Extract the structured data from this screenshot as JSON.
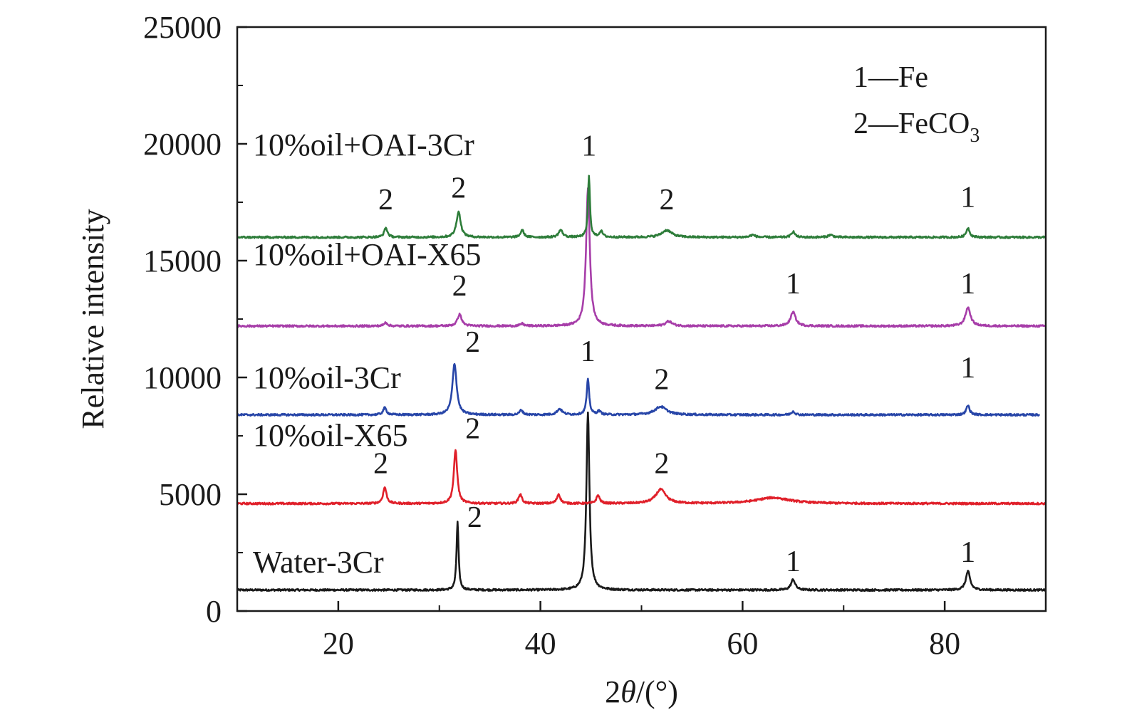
{
  "chart_data": {
    "type": "line",
    "xlabel": "2θ/(°)",
    "ylabel": "Relative intensity",
    "xlim": [
      10,
      90
    ],
    "ylim": [
      0,
      25000
    ],
    "x_ticks": [
      20,
      40,
      60,
      80
    ],
    "y_ticks": [
      0,
      5000,
      10000,
      15000,
      20000,
      25000
    ],
    "legend": {
      "placement": "top-right",
      "entries": [
        {
          "text": "1—Fe"
        },
        {
          "text": "2—FeCO",
          "subscript": "3"
        }
      ]
    },
    "series": [
      {
        "name": "Water-3Cr",
        "color": "#1a1a1a",
        "baseline": 900,
        "peaks": [
          {
            "x": 31.8,
            "height": 2900,
            "width": 0.12
          },
          {
            "x": 44.7,
            "height": 7600,
            "width": 0.18
          },
          {
            "x": 65.0,
            "height": 450,
            "width": 0.25
          },
          {
            "x": 82.3,
            "height": 800,
            "width": 0.25
          }
        ],
        "annotations": [
          {
            "text": "2",
            "x": 33.5,
            "y": 3600
          },
          {
            "text": "1",
            "x": 65.0,
            "y": 1700
          },
          {
            "text": "1",
            "x": 82.3,
            "y": 2100
          }
        ]
      },
      {
        "name": "10%oil-X65",
        "color": "#e0202a",
        "baseline": 4600,
        "peaks": [
          {
            "x": 24.6,
            "height": 700,
            "width": 0.2
          },
          {
            "x": 31.6,
            "height": 2300,
            "width": 0.2
          },
          {
            "x": 38.0,
            "height": 400,
            "width": 0.2
          },
          {
            "x": 41.8,
            "height": 400,
            "width": 0.2
          },
          {
            "x": 45.7,
            "height": 350,
            "width": 0.2
          },
          {
            "x": 51.9,
            "height": 600,
            "width": 0.6
          },
          {
            "x": 63.0,
            "height": 250,
            "width": 2.0
          }
        ],
        "annotations": [
          {
            "text": "2",
            "x": 33.3,
            "y": 7400
          },
          {
            "text": "2",
            "x": 24.2,
            "y": 5900
          },
          {
            "text": "2",
            "x": 52.0,
            "y": 5900
          }
        ]
      },
      {
        "name": "10%oil-3Cr",
        "color": "#2846a8",
        "baseline": 8400,
        "peaks": [
          {
            "x": 24.6,
            "height": 300,
            "width": 0.2
          },
          {
            "x": 31.5,
            "height": 2200,
            "width": 0.25
          },
          {
            "x": 38.1,
            "height": 200,
            "width": 0.2
          },
          {
            "x": 41.9,
            "height": 250,
            "width": 0.3
          },
          {
            "x": 44.7,
            "height": 1500,
            "width": 0.15
          },
          {
            "x": 45.8,
            "height": 150,
            "width": 0.2
          },
          {
            "x": 51.9,
            "height": 350,
            "width": 0.7
          },
          {
            "x": 65.0,
            "height": 150,
            "width": 0.2
          },
          {
            "x": 82.3,
            "height": 400,
            "width": 0.2
          }
        ],
        "annotations": [
          {
            "text": "2",
            "x": 33.3,
            "y": 11100
          },
          {
            "text": "1",
            "x": 44.7,
            "y": 10700
          },
          {
            "text": "2",
            "x": 52.0,
            "y": 9500
          },
          {
            "text": "1",
            "x": 82.3,
            "y": 10000
          }
        ]
      },
      {
        "name": "10%oil+OAI-X65",
        "color": "#a73ea9",
        "baseline": 12200,
        "peaks": [
          {
            "x": 24.7,
            "height": 150,
            "width": 0.2
          },
          {
            "x": 32.0,
            "height": 500,
            "width": 0.25
          },
          {
            "x": 38.2,
            "height": 100,
            "width": 0.2
          },
          {
            "x": 44.7,
            "height": 5900,
            "width": 0.22
          },
          {
            "x": 52.7,
            "height": 200,
            "width": 0.4
          },
          {
            "x": 65.0,
            "height": 600,
            "width": 0.3
          },
          {
            "x": 82.3,
            "height": 800,
            "width": 0.3
          }
        ],
        "annotations": [
          {
            "text": "2",
            "x": 32.0,
            "y": 13500
          },
          {
            "text": "1",
            "x": 65.0,
            "y": 13600
          },
          {
            "text": "1",
            "x": 82.3,
            "y": 13600
          }
        ]
      },
      {
        "name": "10%oil+OAI-3Cr",
        "color": "#2e7d3a",
        "baseline": 16000,
        "peaks": [
          {
            "x": 24.7,
            "height": 400,
            "width": 0.2
          },
          {
            "x": 31.9,
            "height": 1100,
            "width": 0.25
          },
          {
            "x": 38.2,
            "height": 300,
            "width": 0.2
          },
          {
            "x": 42.0,
            "height": 300,
            "width": 0.25
          },
          {
            "x": 44.8,
            "height": 2600,
            "width": 0.12
          },
          {
            "x": 46.0,
            "height": 250,
            "width": 0.2
          },
          {
            "x": 52.5,
            "height": 300,
            "width": 0.6
          },
          {
            "x": 61.0,
            "height": 100,
            "width": 0.3
          },
          {
            "x": 65.0,
            "height": 250,
            "width": 0.2
          },
          {
            "x": 68.7,
            "height": 100,
            "width": 0.3
          },
          {
            "x": 82.3,
            "height": 400,
            "width": 0.2
          }
        ],
        "annotations": [
          {
            "text": "2",
            "x": 24.7,
            "y": 17200
          },
          {
            "text": "2",
            "x": 31.9,
            "y": 17700
          },
          {
            "text": "1",
            "x": 44.8,
            "y": 19500
          },
          {
            "text": "2",
            "x": 52.5,
            "y": 17200
          },
          {
            "text": "1",
            "x": 82.3,
            "y": 17300
          }
        ]
      }
    ]
  }
}
